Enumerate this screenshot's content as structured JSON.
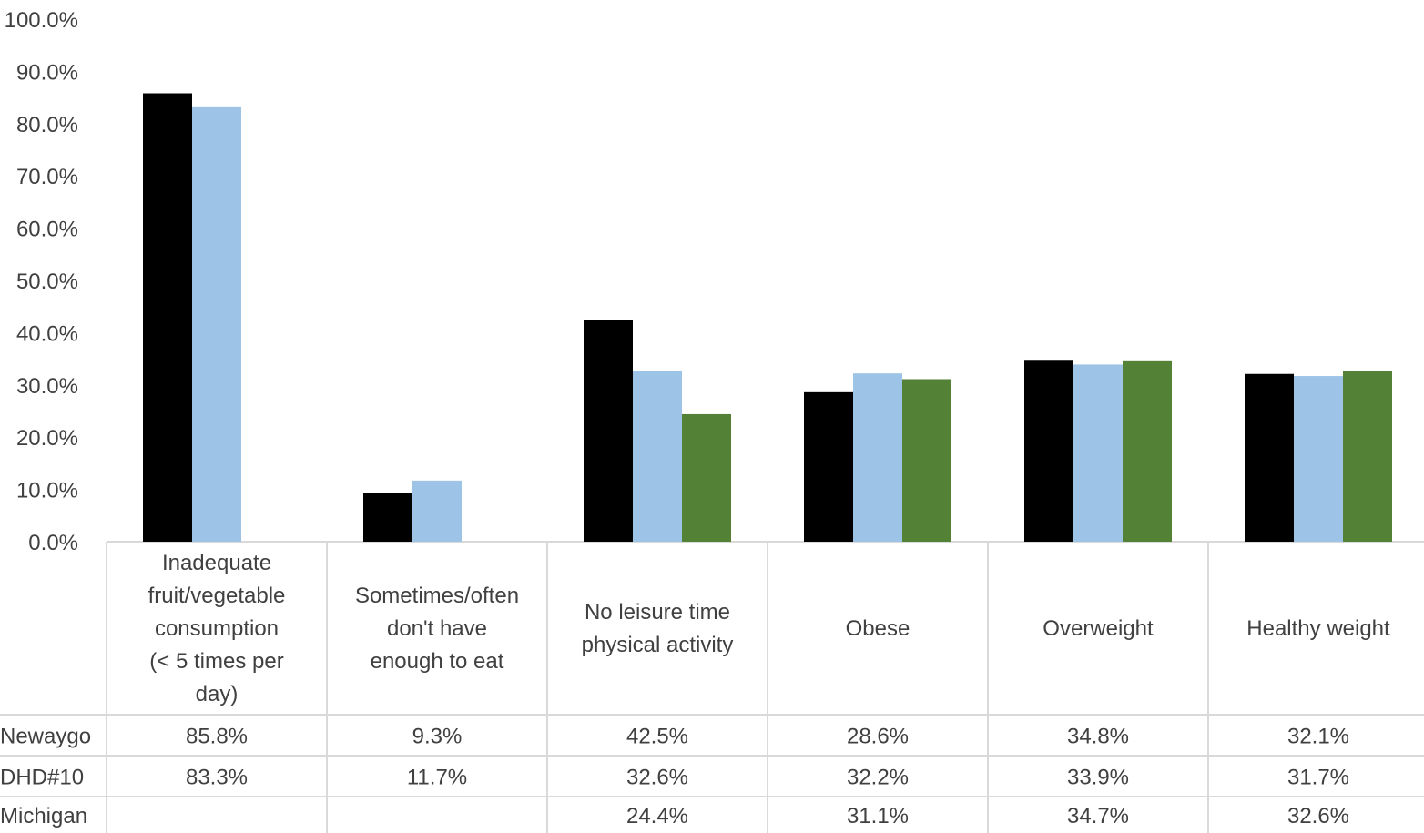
{
  "chart_data": {
    "type": "bar",
    "categories": [
      "Inadequate fruit/vegetable consumption (< 5 times per day)",
      "Sometimes/often don't have enough to eat",
      "No leisure time physical activity",
      "Obese",
      "Overweight",
      "Healthy weight"
    ],
    "category_lines": [
      [
        "Inadequate",
        "fruit/vegetable",
        "consumption",
        "(< 5 times per",
        "day)"
      ],
      [
        "Sometimes/often",
        "don't have",
        "enough to eat"
      ],
      [
        "No leisure time",
        "physical activity"
      ],
      [
        "Obese"
      ],
      [
        "Overweight"
      ],
      [
        "Healthy weight"
      ]
    ],
    "series": [
      {
        "name": "Newaygo",
        "color": "#000000",
        "values": [
          85.8,
          9.3,
          42.5,
          28.6,
          34.8,
          32.1
        ],
        "labels": [
          "85.8%",
          "9.3%",
          "42.5%",
          "28.6%",
          "34.8%",
          "32.1%"
        ]
      },
      {
        "name": "DHD#10",
        "color": "#9dc3e6",
        "values": [
          83.3,
          11.7,
          32.6,
          32.2,
          33.9,
          31.7
        ],
        "labels": [
          "83.3%",
          "11.7%",
          "32.6%",
          "32.2%",
          "33.9%",
          "31.7%"
        ]
      },
      {
        "name": "Michigan",
        "color": "#538135",
        "values": [
          null,
          null,
          24.4,
          31.1,
          34.7,
          32.6
        ],
        "labels": [
          "",
          "",
          "24.4%",
          "31.1%",
          "34.7%",
          "32.6%"
        ]
      }
    ],
    "ylim": [
      0,
      100
    ],
    "yticks": [
      "0.0%",
      "10.0%",
      "20.0%",
      "30.0%",
      "40.0%",
      "50.0%",
      "60.0%",
      "70.0%",
      "80.0%",
      "90.0%",
      "100.0%"
    ],
    "legend": "data-table-below"
  }
}
